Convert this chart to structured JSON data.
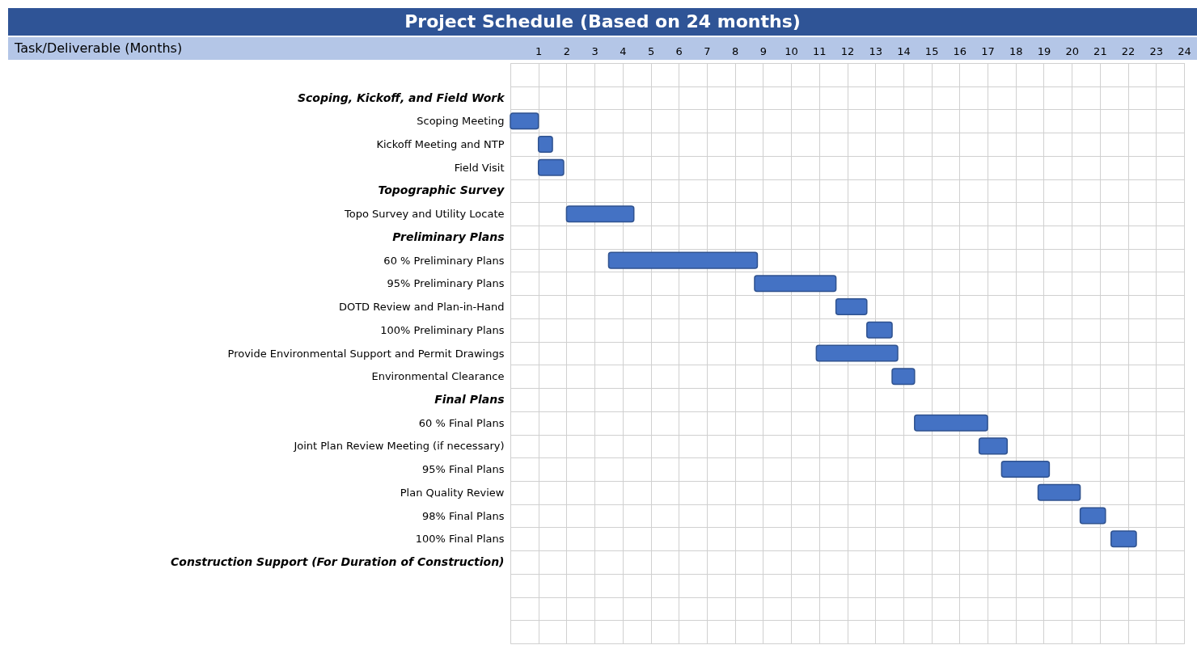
{
  "chart_data": {
    "type": "bar",
    "orientation": "horizontal",
    "title": "Project Schedule (Based on 24 months)",
    "categories": [
      null,
      "Scoping, Kickoff, and Field Work",
      "Scoping Meeting",
      "Kickoff Meeting and NTP",
      "Field Visit",
      "Topographic Survey",
      "Topo Survey and Utility Locate",
      "Preliminary Plans",
      "60 % Preliminary Plans",
      "95% Preliminary Plans",
      "DOTD Review and Plan-in-Hand",
      "100% Preliminary Plans",
      "Provide Environmental Support and Permit Drawings",
      "Environmental Clearance",
      "Final Plans",
      "60 % Final Plans",
      "Joint Plan Review Meeting (if necessary)",
      "95% Final Plans",
      "Plan Quality Review",
      "98% Final Plans",
      "100% Final Plans",
      "Construction Support (For Duration of Construction)",
      null,
      null,
      null
    ],
    "base": [
      null,
      null,
      0,
      1,
      1,
      null,
      2,
      null,
      3.5,
      8.7,
      11.6,
      12.7,
      10.9,
      13.6,
      null,
      14.4,
      16.7,
      17.5,
      18.8,
      20.3,
      21.4,
      null,
      null,
      null,
      null
    ],
    "values": [
      null,
      null,
      1,
      0.5,
      0.9,
      null,
      2.4,
      null,
      5.3,
      2.9,
      1.1,
      0.9,
      2.9,
      0.8,
      null,
      2.6,
      1,
      1.7,
      1.5,
      0.9,
      0.9,
      null,
      null,
      null,
      null
    ],
    "annotations": [
      "Task/Deliverable (Months)"
    ],
    "color": "#4472c4",
    "xlim": [
      0,
      24
    ],
    "xticks": [
      1,
      2,
      3,
      4,
      5,
      6,
      7,
      8,
      9,
      10,
      11,
      12,
      13,
      14,
      15,
      16,
      17,
      18,
      19,
      20,
      21,
      22,
      23,
      24
    ],
    "grid": true
  }
}
